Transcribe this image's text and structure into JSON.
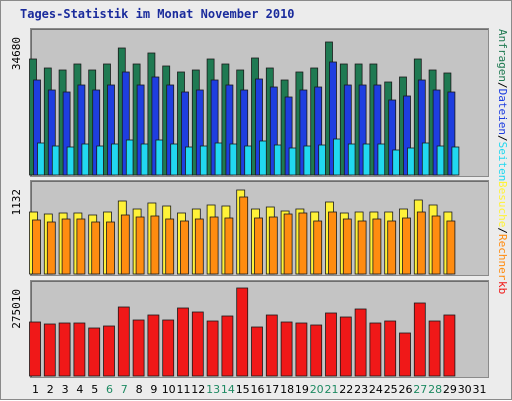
{
  "title": "Tages-Statistik im Monat November 2010",
  "colors": {
    "anfragen": "#1f7a52",
    "dateien": "#1e3ee0",
    "seiten": "#21d8f0",
    "besuche": "#fff238",
    "rechner": "#ff8c10",
    "kb": "#f01818",
    "weekend_label": "#1e8a62",
    "weekday_label": "#000000",
    "panel_bg": "#c4c4c4"
  },
  "right_labels": {
    "top": [
      {
        "text": "Anfragen",
        "color": "#1f7a52"
      },
      {
        "text": "/",
        "color": "#000000"
      },
      {
        "text": "Dateien",
        "color": "#1e3ee0"
      },
      {
        "text": "/",
        "color": "#000000"
      },
      {
        "text": "Seiten",
        "color": "#21d8f0"
      }
    ],
    "middle": [
      {
        "text": "Besuche",
        "color": "#fff238"
      },
      {
        "text": "/",
        "color": "#000000"
      },
      {
        "text": "Rechner",
        "color": "#ff8c10"
      }
    ],
    "bottom": [
      {
        "text": "kb",
        "color": "#f01818"
      }
    ]
  },
  "chart_data": [
    {
      "type": "bar",
      "panel": "hits",
      "y_tick_label": "34680",
      "ylim": [
        0,
        34680
      ],
      "categories": [
        "1",
        "2",
        "3",
        "4",
        "5",
        "6",
        "7",
        "8",
        "9",
        "10",
        "11",
        "12",
        "13",
        "14",
        "15",
        "16",
        "17",
        "18",
        "19",
        "20",
        "21",
        "22",
        "23",
        "24",
        "25",
        "26",
        "27",
        "28",
        "29",
        "30",
        "31"
      ],
      "weekend": [
        6,
        7,
        13,
        14,
        20,
        21,
        27,
        28
      ],
      "series": [
        {
          "name": "Anfragen",
          "values": [
            28900,
            26700,
            26200,
            27700,
            26200,
            27700,
            31600,
            27700,
            30400,
            27300,
            25700,
            26200,
            28900,
            27700,
            26200,
            29300,
            26800,
            23700,
            25700,
            26800,
            33200,
            27700,
            27700,
            27700,
            23300,
            24400,
            28900,
            26200,
            25500,
            null,
            null
          ]
        },
        {
          "name": "Dateien",
          "values": [
            23700,
            21200,
            20800,
            22400,
            21200,
            22400,
            25600,
            22400,
            24500,
            22400,
            20800,
            21200,
            23700,
            22400,
            21200,
            24000,
            21900,
            19400,
            21200,
            21900,
            28100,
            22400,
            22400,
            22400,
            18700,
            19700,
            23700,
            21200,
            20800,
            null,
            null
          ]
        },
        {
          "name": "Seiten",
          "values": [
            8000,
            7300,
            7100,
            7700,
            7300,
            7700,
            8800,
            7700,
            8800,
            7700,
            7100,
            7300,
            8000,
            7700,
            7300,
            8400,
            7500,
            6700,
            7300,
            7500,
            9100,
            7700,
            7700,
            7700,
            6300,
            6700,
            8000,
            7300,
            7100,
            null,
            null
          ]
        }
      ]
    },
    {
      "type": "bar",
      "panel": "visits",
      "y_tick_label": "1132",
      "ylim": [
        0,
        1132
      ],
      "categories": [
        "1",
        "2",
        "3",
        "4",
        "5",
        "6",
        "7",
        "8",
        "9",
        "10",
        "11",
        "12",
        "13",
        "14",
        "15",
        "16",
        "17",
        "18",
        "19",
        "20",
        "21",
        "22",
        "23",
        "24",
        "25",
        "26",
        "27",
        "28",
        "29",
        "30",
        "31"
      ],
      "weekend": [
        6,
        7,
        13,
        14,
        20,
        21,
        27,
        28
      ],
      "series": [
        {
          "name": "Besuche",
          "values": [
            820,
            790,
            800,
            800,
            780,
            820,
            960,
            850,
            930,
            900,
            800,
            860,
            910,
            900,
            1110,
            850,
            880,
            830,
            860,
            810,
            950,
            800,
            820,
            820,
            820,
            860,
            980,
            910,
            810,
            null,
            null
          ]
        },
        {
          "name": "Rechner",
          "values": [
            710,
            680,
            730,
            720,
            680,
            690,
            780,
            750,
            760,
            730,
            700,
            720,
            750,
            740,
            1010,
            740,
            750,
            790,
            800,
            700,
            820,
            720,
            700,
            720,
            700,
            740,
            810,
            760,
            700,
            null,
            null
          ]
        }
      ]
    },
    {
      "type": "bar",
      "panel": "kb",
      "y_tick_label": "275010",
      "ylim": [
        0,
        275010
      ],
      "categories": [
        "1",
        "2",
        "3",
        "4",
        "5",
        "6",
        "7",
        "8",
        "9",
        "10",
        "11",
        "12",
        "13",
        "14",
        "15",
        "16",
        "17",
        "18",
        "19",
        "20",
        "21",
        "22",
        "23",
        "24",
        "25",
        "26",
        "27",
        "28",
        "29",
        "30",
        "31"
      ],
      "weekend": [
        6,
        7,
        13,
        14,
        20,
        21,
        27,
        28
      ],
      "series": [
        {
          "name": "kb",
          "values": [
            169000,
            164000,
            166000,
            166000,
            151000,
            157000,
            216000,
            174000,
            192000,
            174000,
            214000,
            200000,
            172000,
            186000,
            275010,
            153000,
            190000,
            169000,
            166000,
            158000,
            197000,
            185000,
            210000,
            166000,
            172000,
            135000,
            228000,
            172000,
            190000,
            null,
            null
          ]
        }
      ]
    }
  ]
}
